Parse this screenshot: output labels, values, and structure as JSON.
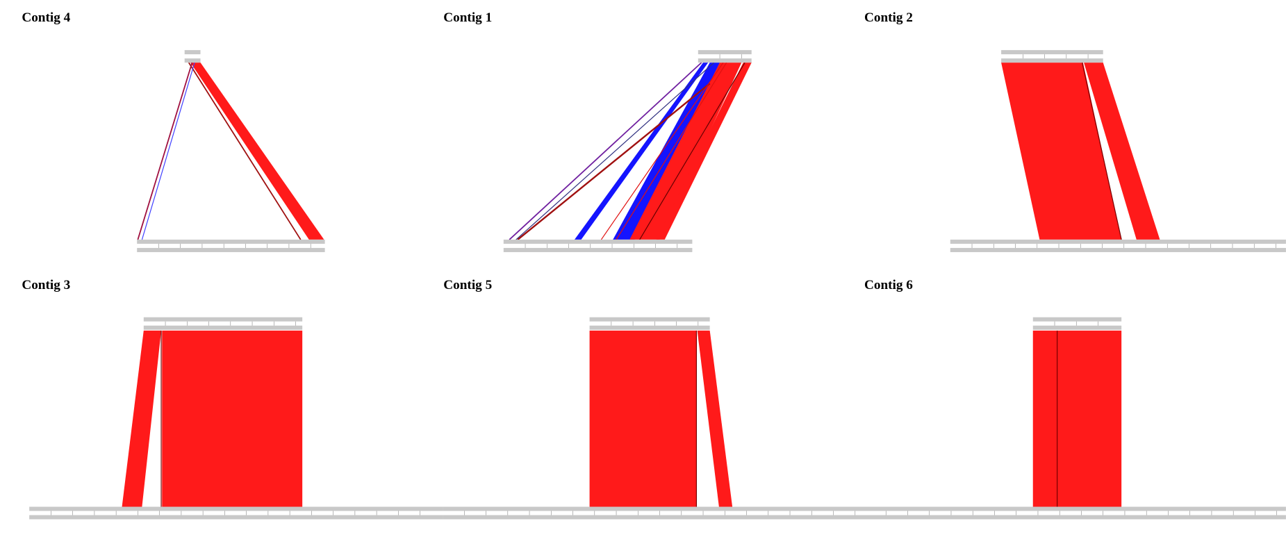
{
  "panels": [
    {
      "title": "Contig 4"
    },
    {
      "title": "Contig 1"
    },
    {
      "title": "Contig 2"
    },
    {
      "title": "Contig 3"
    },
    {
      "title": "Contig 5"
    },
    {
      "title": "Contig 6"
    }
  ]
}
